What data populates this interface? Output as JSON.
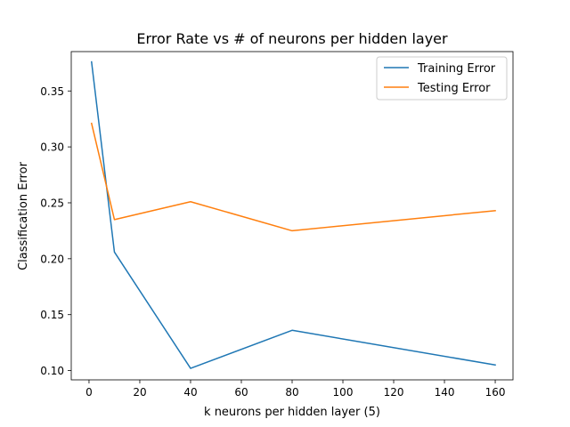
{
  "chart_data": {
    "type": "line",
    "title": "Error Rate vs # of neurons per hidden layer",
    "xlabel": "k neurons per hidden layer (5)",
    "ylabel": "Classification Error",
    "xlim": [
      -7,
      167
    ],
    "ylim": [
      0.0917,
      0.3852
    ],
    "xticks": [
      0,
      20,
      40,
      60,
      80,
      100,
      120,
      140,
      160
    ],
    "xtick_labels": [
      "0",
      "20",
      "40",
      "60",
      "80",
      "100",
      "120",
      "140",
      "160"
    ],
    "yticks": [
      0.1,
      0.15,
      0.2,
      0.25,
      0.3,
      0.35
    ],
    "ytick_labels": [
      "0.10",
      "0.15",
      "0.20",
      "0.25",
      "0.30",
      "0.35"
    ],
    "grid": false,
    "legend_position": "top-right",
    "series": [
      {
        "name": "Training Error",
        "color": "#1f77b4",
        "x": [
          1,
          10,
          40,
          80,
          160
        ],
        "y": [
          0.376,
          0.206,
          0.102,
          0.136,
          0.105
        ]
      },
      {
        "name": "Testing Error",
        "color": "#ff7f0e",
        "x": [
          1,
          10,
          40,
          80,
          160
        ],
        "y": [
          0.321,
          0.235,
          0.251,
          0.225,
          0.243
        ]
      }
    ]
  }
}
